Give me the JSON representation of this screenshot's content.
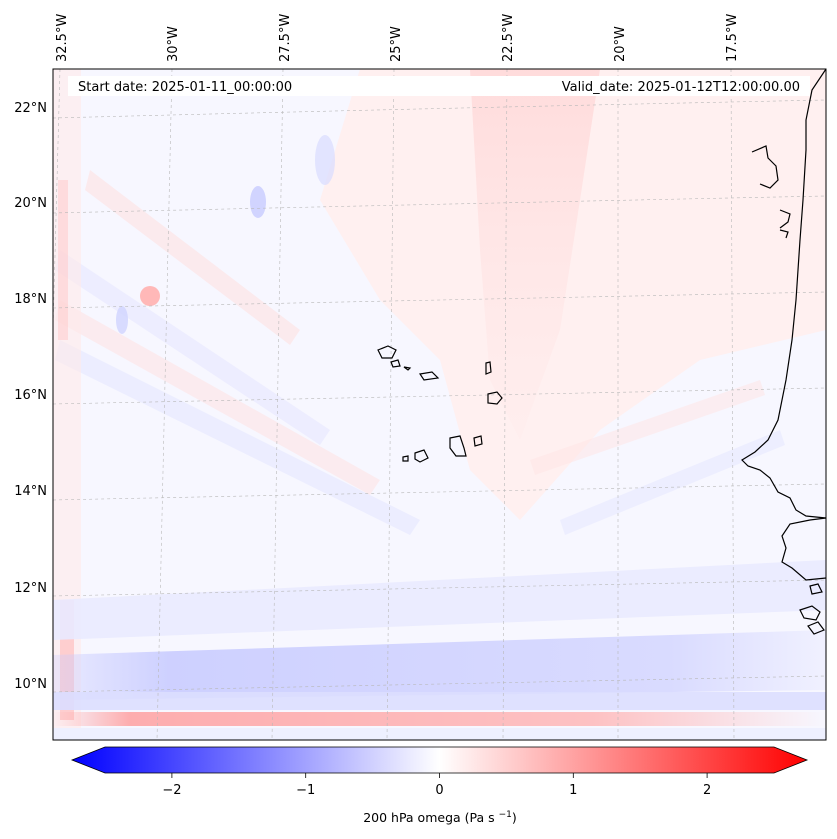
{
  "map": {
    "start_date": "Start date: 2025-01-11_00:00:00",
    "valid_date": "Valid_date: 2025-01-12T12:00:00.00",
    "lon_labels": [
      "32.5°W",
      "30°W",
      "27.5°W",
      "25°W",
      "22.5°W",
      "20°W",
      "17.5°W"
    ],
    "lat_labels": [
      "22°N",
      "20°N",
      "18°N",
      "16°N",
      "14°N",
      "12°N",
      "10°N"
    ],
    "variable": "200 hPa omega",
    "units": "Pa s",
    "units_exponent": "−1"
  },
  "colorbar": {
    "tick_labels": [
      "−2",
      "−1",
      "0",
      "1",
      "2"
    ],
    "tick_values": [
      -2,
      -1,
      0,
      1,
      2
    ],
    "range": [
      -2.5,
      2.5
    ],
    "colormap": "bwr",
    "extend": "both",
    "colors": {
      "low": "#0000ff",
      "mid": "#ffffff",
      "high": "#ff0000"
    }
  },
  "chart_data": {
    "type": "heatmap",
    "title": "",
    "colorbar_label": "200 hPa omega (Pa s−1)",
    "x_ticks": [
      "32.5°W",
      "30°W",
      "27.5°W",
      "25°W",
      "22.5°W",
      "20°W",
      "17.5°W"
    ],
    "y_ticks": [
      "22°N",
      "20°N",
      "18°N",
      "16°N",
      "14°N",
      "12°N",
      "10°N"
    ],
    "value_range": [
      -2.5,
      2.5
    ],
    "annotations": [
      "Start date: 2025-01-11_00:00:00",
      "Valid_date: 2025-01-12T12:00:00.00"
    ]
  }
}
